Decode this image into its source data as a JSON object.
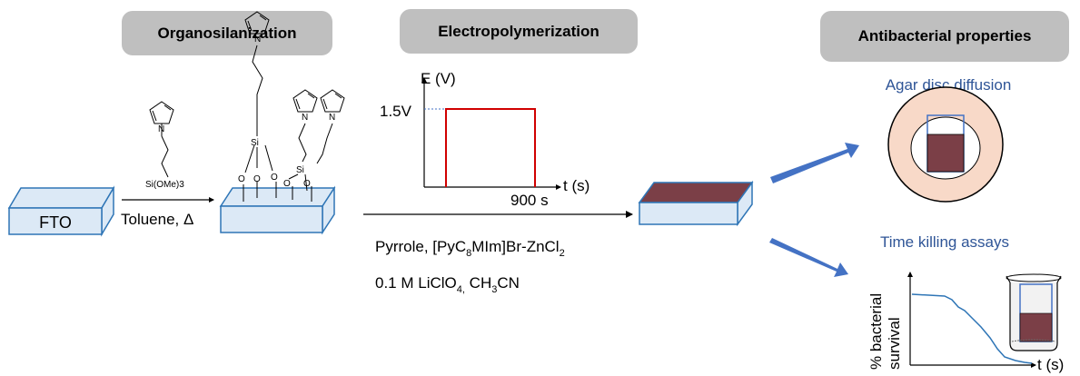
{
  "steps": {
    "organosilanization": "Organosilanization",
    "electropolymerization": "Electropolymerization",
    "antibacterial": "Antibacterial properties"
  },
  "substrate": {
    "label": "FTO"
  },
  "silanization": {
    "reagent": "Si(OMe)3",
    "conditions": "Toluene, Δ",
    "surface_atoms": {
      "si": "Si",
      "o": "O",
      "n": "N"
    }
  },
  "potential_plot": {
    "y_label": "E (V)",
    "x_label": "t (s)",
    "potential_value": "1.5V",
    "duration": "900 s"
  },
  "electrolyte": {
    "line1": "Pyrrole, [PyC8MIm]Br-ZnCl2",
    "line2": "0.1 M LiClO4, CH3CN"
  },
  "assays": {
    "agar": "Agar disc diffusion",
    "killing": "Time killing assays",
    "kill_ylabel_1": "% bacterial",
    "kill_ylabel_2": "survival",
    "kill_xlabel": "t (s)"
  },
  "colors": {
    "pill": "#bfbfbf",
    "substrate_fill": "#dce9f6",
    "substrate_edge": "#2e75b6",
    "film": "#7b3f47",
    "arrow_blue": "#4472c4",
    "plot_red": "#d00000",
    "assay_title": "#2f5597",
    "agar_fill": "#f8d9c8"
  }
}
